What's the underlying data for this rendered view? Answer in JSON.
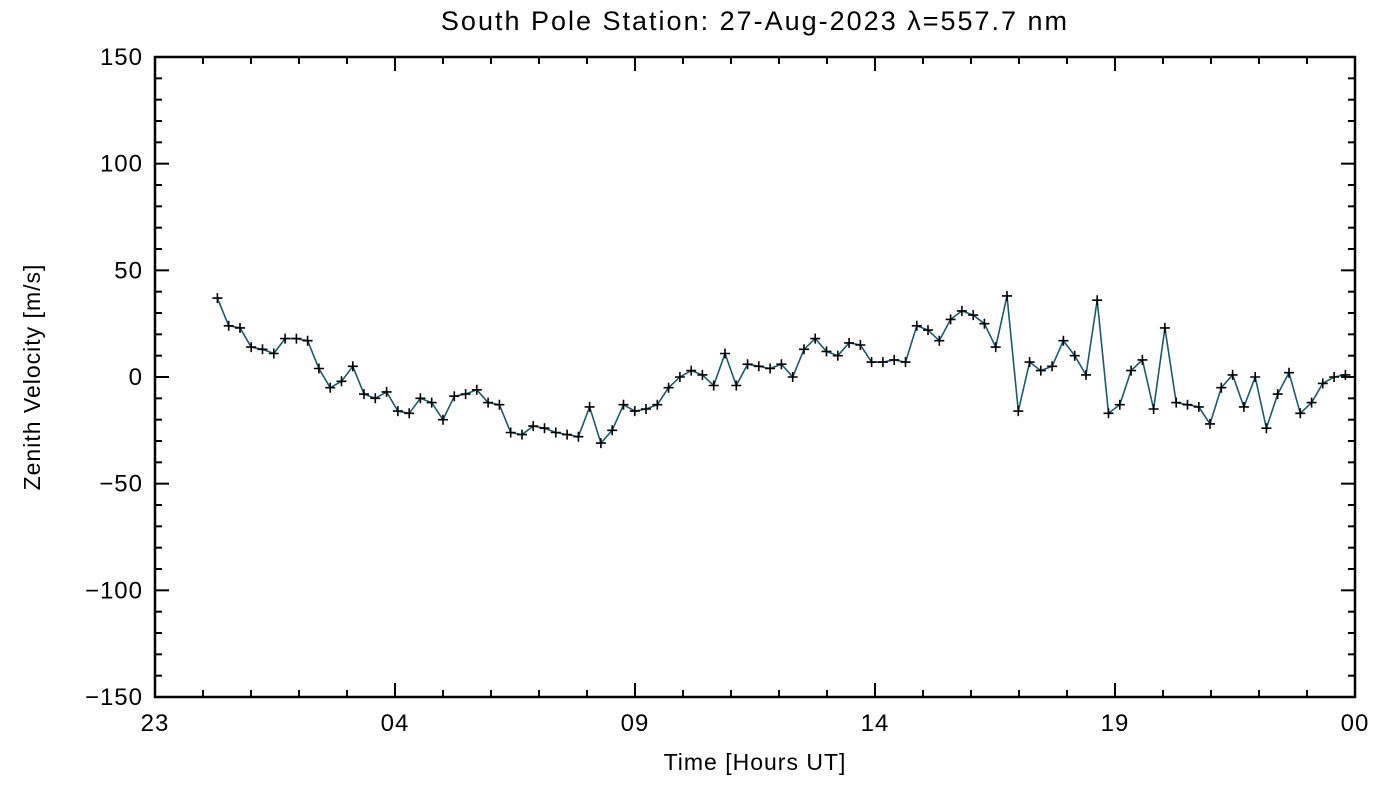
{
  "chart_data": {
    "type": "line",
    "title": "South Pole Station: 27-Aug-2023 λ=557.7 nm",
    "xlabel": "Time [Hours UT]",
    "ylabel": "Zenith Velocity [m/s]",
    "legend": "none",
    "grid": "off",
    "frame": "box-with-inward-ticks",
    "x_axis": {
      "unit": "hours UT",
      "range_hours": [
        23,
        48
      ],
      "major_ticks": [
        23,
        28,
        33,
        38,
        43,
        48
      ],
      "major_tick_labels": [
        "23",
        "04",
        "09",
        "14",
        "19",
        "00"
      ],
      "minor_tick_interval": 1
    },
    "y_axis": {
      "unit": "m/s",
      "range": [
        -150,
        150
      ],
      "major_ticks": [
        -150,
        -100,
        -50,
        0,
        50,
        100,
        150
      ],
      "major_tick_labels": [
        "−150",
        "−100",
        "−50",
        "0",
        "50",
        "100",
        "150"
      ],
      "minor_tick_interval": 10
    },
    "series": [
      {
        "name": "zenith-velocity",
        "marker": "plus",
        "line_color": "#1a5a6e",
        "marker_color": "#000000",
        "x_start_hours": 24.3,
        "x_end_hours": 47.8,
        "values": [
          37,
          24,
          23,
          14,
          13,
          11,
          18,
          18,
          17,
          4,
          -5,
          -2,
          5,
          -8,
          -10,
          -7,
          -16,
          -17,
          -10,
          -12,
          -20,
          -9,
          -8,
          -6,
          -12,
          -13,
          -26,
          -27,
          -23,
          -24,
          -26,
          -27,
          -28,
          -14,
          -31,
          -25,
          -13,
          -16,
          -15,
          -13,
          -5,
          0,
          3,
          1,
          -4,
          11,
          -4,
          6,
          5,
          4,
          6,
          0,
          13,
          18,
          12,
          10,
          16,
          15,
          7,
          7,
          8,
          7,
          24,
          22,
          17,
          27,
          31,
          29,
          25,
          14,
          38,
          -16,
          7,
          3,
          5,
          17,
          10,
          1,
          36,
          -17,
          -13,
          3,
          8,
          -15,
          23,
          -12,
          -13,
          -14,
          -22,
          -5,
          1,
          -14,
          0,
          -24,
          -8,
          2,
          -17,
          -12,
          -3,
          0,
          1
        ]
      }
    ]
  }
}
